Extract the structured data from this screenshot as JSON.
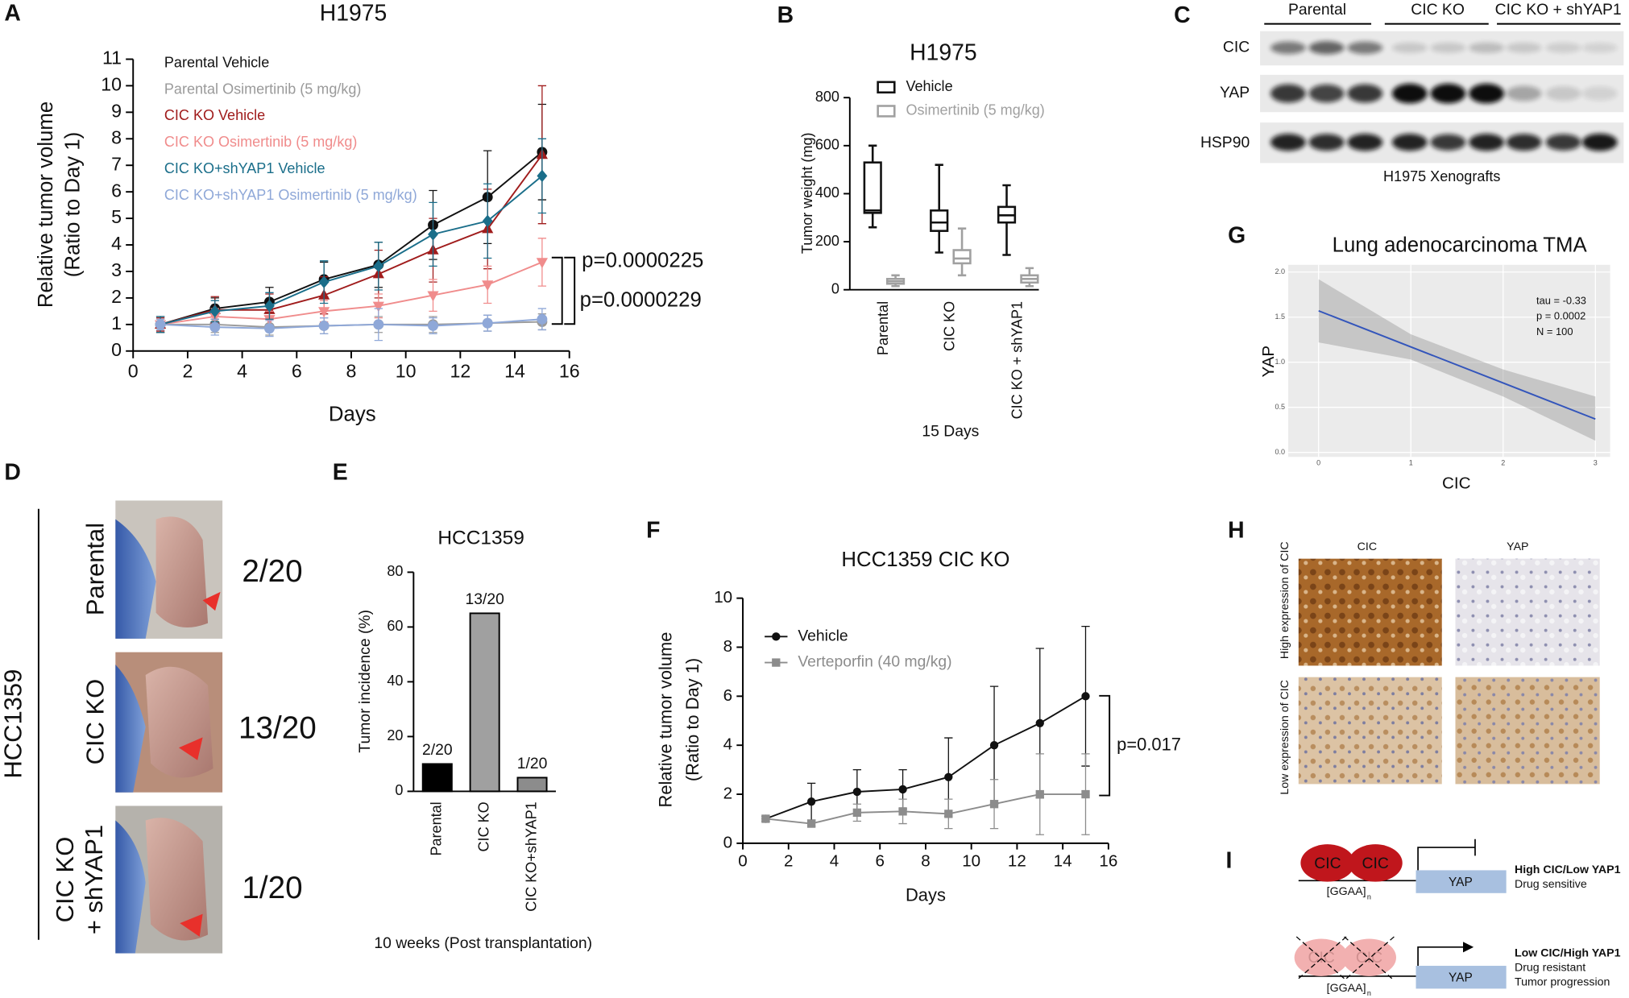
{
  "panel_labels": [
    "A",
    "B",
    "C",
    "D",
    "E",
    "F",
    "G",
    "H",
    "I"
  ],
  "chart_data": [
    {
      "type": "line",
      "title": "H1975",
      "xlabel": "Days",
      "ylabel": [
        "Relative tumor volume",
        "(Ratio to Day 1)"
      ],
      "x": [
        1,
        3,
        5,
        7,
        9,
        11,
        13,
        15
      ],
      "xlim": [
        0,
        16
      ],
      "xticks": [
        0,
        2,
        4,
        6,
        8,
        10,
        12,
        14,
        16
      ],
      "ylim": [
        0,
        11
      ],
      "yticks": [
        0,
        1,
        2,
        3,
        4,
        5,
        6,
        7,
        8,
        9,
        10,
        11
      ],
      "legend": "upper left",
      "series": [
        {
          "name": "Parental Vehicle",
          "color": "#111111",
          "marker": "circle",
          "values": [
            1,
            1.6,
            1.85,
            2.7,
            3.25,
            4.75,
            5.8,
            7.5
          ],
          "errors": [
            0.3,
            0.4,
            0.55,
            0.65,
            0.85,
            1.3,
            1.75,
            1.8
          ]
        },
        {
          "name": "Parental Osimertinib (5 mg/kg)",
          "color": "#9a9a9a",
          "marker": "circle",
          "values": [
            1,
            1,
            0.9,
            0.95,
            1.0,
            1.0,
            1.05,
            1.1
          ],
          "errors": [
            0.2,
            0.3,
            0.3,
            0.3,
            0.3,
            0.3,
            0.3,
            0.3
          ]
        },
        {
          "name": "CIC KO Vehicle",
          "color": "#a01c1c",
          "marker": "triangle",
          "values": [
            1,
            1.55,
            1.55,
            2.1,
            2.9,
            3.8,
            4.6,
            7.4
          ],
          "errors": [
            0.25,
            0.5,
            0.6,
            0.7,
            0.9,
            1.2,
            1.5,
            2.6
          ]
        },
        {
          "name": "CIC KO Osimertinib (5 mg/kg)",
          "color": "#f08c8c",
          "marker": "triangle-down",
          "values": [
            1,
            1.3,
            1.2,
            1.5,
            1.7,
            2.1,
            2.5,
            3.35
          ],
          "errors": [
            0.2,
            0.3,
            0.3,
            0.4,
            0.45,
            0.6,
            0.7,
            0.9
          ]
        },
        {
          "name": "CIC KO+shYAP1 Vehicle",
          "color": "#1a6e8a",
          "marker": "diamond",
          "values": [
            1,
            1.5,
            1.7,
            2.6,
            3.2,
            4.4,
            4.9,
            6.6
          ],
          "errors": [
            0.3,
            0.4,
            0.5,
            0.8,
            0.9,
            1.2,
            1.4,
            1.4
          ]
        },
        {
          "name": "CIC KO+shYAP1 Osimertinib (5 mg/kg)",
          "color": "#8fa8d8",
          "marker": "circle",
          "values": [
            1,
            0.9,
            0.85,
            0.95,
            1.0,
            0.95,
            1.05,
            1.2
          ],
          "errors": [
            0.2,
            0.3,
            0.3,
            0.3,
            0.6,
            0.3,
            0.3,
            0.4
          ]
        }
      ],
      "annotations": [
        "p=0.0000225",
        "p=0.0000229"
      ]
    },
    {
      "type": "box",
      "title": "H1975",
      "xlabel": "15 Days",
      "ylabel": [
        "Tumor weight (mg)"
      ],
      "categories": [
        "Parental",
        "CIC KO",
        "CIC KO + shYAP1"
      ],
      "ylim": [
        0,
        800
      ],
      "yticks": [
        0,
        200,
        400,
        600,
        800
      ],
      "legend": "upper right",
      "series": [
        {
          "name": "Vehicle",
          "color": "#111111",
          "min": [
            260,
            155,
            145
          ],
          "q1": [
            320,
            245,
            280
          ],
          "median": [
            330,
            280,
            310
          ],
          "q3": [
            530,
            330,
            345
          ],
          "max": [
            600,
            520,
            435
          ]
        },
        {
          "name": "Osimertinib (5 mg/kg)",
          "color": "#a0a0a0",
          "min": [
            15,
            60,
            15
          ],
          "q1": [
            25,
            110,
            30
          ],
          "median": [
            35,
            130,
            45
          ],
          "q3": [
            45,
            165,
            60
          ],
          "max": [
            60,
            255,
            90
          ]
        }
      ]
    },
    {
      "type": "bar",
      "title": "HCC1359",
      "xlabel": "10 weeks (Post transplantation)",
      "ylabel": [
        "Tumor incidence (%)"
      ],
      "categories": [
        "Parental",
        "CIC KO",
        "CIC KO+shYAP1"
      ],
      "values": [
        10,
        65,
        5
      ],
      "value_labels": [
        "2/20",
        "13/20",
        "1/20"
      ],
      "colors": [
        "#000000",
        "#a0a0a0",
        "#8c8c8c"
      ],
      "ylim": [
        0,
        80
      ],
      "yticks": [
        0,
        20,
        40,
        60,
        80
      ]
    },
    {
      "type": "line",
      "title": "HCC1359 CIC KO",
      "xlabel": "Days",
      "ylabel": [
        "Relative tumor volume",
        "(Ratio to Day 1)"
      ],
      "x": [
        1,
        3,
        5,
        7,
        9,
        11,
        13,
        15
      ],
      "xlim": [
        0,
        16
      ],
      "xticks": [
        0,
        2,
        4,
        6,
        8,
        10,
        12,
        14,
        16
      ],
      "ylim": [
        0,
        10
      ],
      "yticks": [
        0,
        2,
        4,
        6,
        8,
        10
      ],
      "legend": "upper left",
      "series": [
        {
          "name": "Vehicle",
          "color": "#111111",
          "marker": "circle",
          "values": [
            1,
            1.7,
            2.1,
            2.2,
            2.7,
            4.0,
            4.9,
            6.0
          ],
          "errors": [
            0.1,
            0.75,
            0.9,
            0.8,
            1.6,
            2.4,
            3.05,
            2.85
          ]
        },
        {
          "name": "Verteporfin (40 mg/kg)",
          "color": "#8c8c8c",
          "marker": "square",
          "values": [
            1,
            0.8,
            1.25,
            1.3,
            1.2,
            1.6,
            2.0,
            2.0
          ],
          "errors": [
            0.1,
            0.1,
            0.35,
            0.5,
            0.6,
            1.0,
            1.65,
            1.65
          ]
        }
      ],
      "annotations": [
        "p=0.017"
      ]
    },
    {
      "type": "regression",
      "title": "Lung adenocarcinoma TMA",
      "xlabel": "CIC",
      "ylabel": [
        "YAP"
      ],
      "x": [
        0,
        1,
        2,
        3
      ],
      "values": [
        1.57,
        1.17,
        0.77,
        0.37
      ],
      "band_lower": [
        1.22,
        1.03,
        0.62,
        0.13
      ],
      "band_upper": [
        1.92,
        1.31,
        0.92,
        0.62
      ],
      "color": "#3355bb",
      "xlim": [
        -0.33,
        3.16
      ],
      "xticks": [
        0,
        1,
        2,
        3
      ],
      "ylim": [
        -0.05,
        2.08
      ],
      "yticks": [
        {
          "value": 0,
          "label": "0.0"
        },
        {
          "value": 0.5,
          "label": "0.5"
        },
        {
          "value": 1,
          "label": "1.0"
        },
        {
          "value": 1.5,
          "label": "1.5"
        },
        {
          "value": 2,
          "label": "2.0"
        }
      ],
      "grid": true,
      "annotations": [
        "tau = -0.33",
        "p = 0.0002",
        "N = 100"
      ]
    }
  ],
  "western_blot": {
    "groups": [
      "Parental",
      "CIC KO",
      "CIC KO + shYAP1"
    ],
    "rows": [
      "CIC",
      "YAP",
      "HSP90"
    ],
    "caption": "H1975 Xenografts"
  },
  "xenografts": {
    "cell_line": "HCC1359",
    "rows": [
      {
        "label": [
          "Parental"
        ],
        "incidence": "2/20"
      },
      {
        "label": [
          "CIC KO"
        ],
        "incidence": "13/20"
      },
      {
        "label": [
          "CIC KO",
          "+ shYAP1"
        ],
        "incidence": "1/20"
      }
    ]
  },
  "ihc": {
    "columns": [
      "CIC",
      "YAP"
    ],
    "rows": [
      "High expression of CIC",
      "Low expression of CIC"
    ]
  },
  "model": {
    "states": [
      {
        "proteins": [
          "CIC",
          "CIC"
        ],
        "motif": "[GGAA]",
        "motif_subscript": "n",
        "gene": "YAP",
        "title": "High CIC/Low YAP1",
        "lines": [
          "Drug sensitive"
        ]
      },
      {
        "proteins": [
          "CIC",
          "CIC"
        ],
        "motif": "[GGAA]",
        "motif_subscript": "n",
        "gene": "YAP",
        "title": "Low CIC/High YAP1",
        "lines": [
          "Drug resistant",
          "Tumor progression"
        ]
      }
    ]
  }
}
